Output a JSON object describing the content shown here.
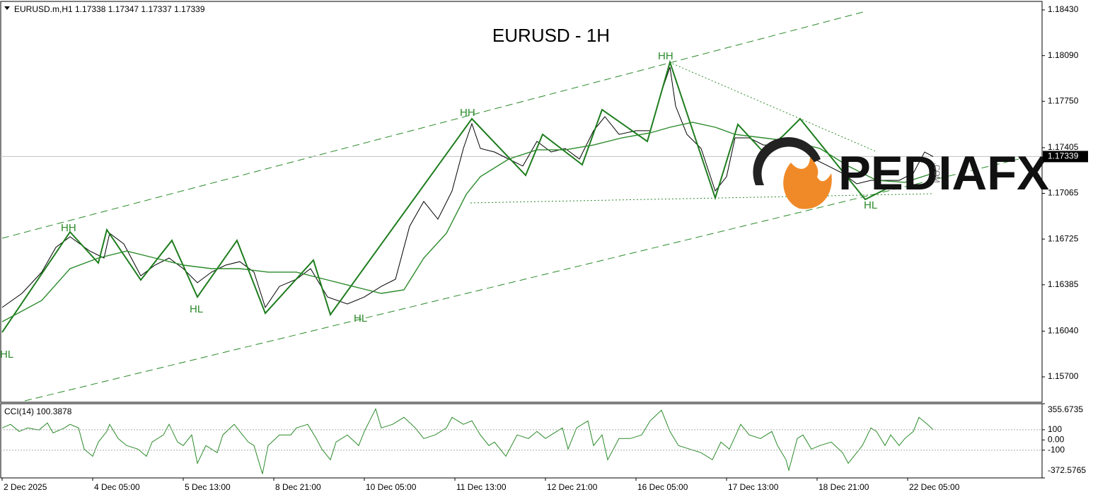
{
  "chart_data": [
    {
      "type": "line",
      "header": "EURUSD.m,H1  1.17338 1.17347 1.17337 1.17339",
      "title": "EURUSD - 1H",
      "annotations": [
        "HH",
        "HH",
        "HH",
        "HL",
        "HL",
        "HL",
        "HL"
      ],
      "last_price": 1.17339,
      "xlim": [
        -0.5,
        367.5
      ],
      "ylim": [
        1.15516,
        1.18488
      ],
      "yticks": [
        {
          "value": 1.1843,
          "label": "1.18430"
        },
        {
          "value": 1.1809,
          "label": "1.18090"
        },
        {
          "value": 1.1775,
          "label": "1.17750"
        },
        1.17405,
        1.17065,
        1.16725,
        1.16385,
        {
          "value": 1.1604,
          "label": "1.16040"
        },
        {
          "value": 1.157,
          "label": "1.15700"
        }
      ],
      "series": [
        {
          "color": "#000000",
          "x": [
            0,
            7,
            14,
            19,
            24,
            31,
            36,
            38,
            43,
            49,
            54,
            59,
            64,
            69,
            74,
            79,
            84,
            89,
            93,
            98,
            104,
            109,
            115,
            122,
            128,
            134,
            139,
            144,
            149,
            154,
            159,
            163,
            166,
            169,
            174,
            179,
            184,
            189,
            194,
            199,
            204,
            209,
            213,
            218,
            224,
            229,
            233,
            236,
            238,
            242,
            247,
            252,
            256,
            259,
            264,
            269,
            274,
            279,
            283,
            287,
            292,
            297,
            302,
            307,
            312,
            317,
            322,
            326,
            329
          ],
          "values": [
            1.16216,
            1.16321,
            1.16479,
            1.16663,
            1.16742,
            1.16636,
            1.16584,
            1.16768,
            1.16689,
            1.16452,
            1.16531,
            1.16584,
            1.16505,
            1.164,
            1.16479,
            1.16531,
            1.16557,
            1.16479,
            1.16216,
            1.16373,
            1.16426,
            1.16505,
            1.16294,
            1.16242,
            1.16294,
            1.16373,
            1.16426,
            1.1682,
            1.17005,
            1.16873,
            1.17083,
            1.17399,
            1.17583,
            1.17399,
            1.17373,
            1.1732,
            1.17268,
            1.17452,
            1.17373,
            1.17399,
            1.1732,
            1.17531,
            1.17636,
            1.17504,
            1.17531,
            1.17531,
            1.1782,
            1.18004,
            1.17715,
            1.17504,
            1.17399,
            1.17083,
            1.17189,
            1.17478,
            1.17478,
            1.17425,
            1.17425,
            1.17452,
            1.17399,
            1.1732,
            1.17268,
            1.17215,
            1.17136,
            1.17162,
            1.17162,
            1.17162,
            1.17215,
            1.17373,
            1.17339
          ]
        },
        {
          "color": "#1e7d1e",
          "x": [
            0,
            24,
            34,
            37,
            49,
            60,
            69,
            83,
            93,
            110,
            116,
            166,
            185,
            191,
            205,
            212,
            228,
            236,
            252,
            260,
            269,
            276,
            282,
            305,
            315
          ],
          "values": [
            1.16031,
            1.16778,
            1.16547,
            1.16794,
            1.16421,
            1.16715,
            1.16294,
            1.16715,
            1.16173,
            1.16568,
            1.16163,
            1.1762,
            1.17199,
            1.17504,
            1.17278,
            1.17688,
            1.17452,
            1.18041,
            1.17031,
            1.17578,
            1.17373,
            1.17494,
            1.1762,
            1.1702,
            1.17126
          ]
        },
        {
          "color": "#2a8a2a",
          "x": [
            0,
            14,
            24,
            34,
            44,
            54,
            64,
            74,
            84,
            94,
            104,
            114,
            124,
            134,
            142,
            149,
            157,
            164,
            169,
            179,
            189,
            199,
            209,
            219,
            229,
            236,
            244,
            252,
            259,
            269,
            279,
            289,
            299,
            309,
            319,
            329
          ],
          "values": [
            1.1611,
            1.16268,
            1.16505,
            1.16584,
            1.16636,
            1.16584,
            1.16531,
            1.16505,
            1.16505,
            1.16479,
            1.16479,
            1.16426,
            1.16373,
            1.16321,
            1.16347,
            1.16584,
            1.16768,
            1.17057,
            1.17189,
            1.1732,
            1.17389,
            1.17389,
            1.17425,
            1.17478,
            1.17515,
            1.17557,
            1.17594,
            1.17557,
            1.17504,
            1.17478,
            1.17452,
            1.17399,
            1.17268,
            1.17162,
            1.17147,
            1.17215
          ]
        }
      ]
    },
    {
      "type": "line",
      "title": "CCI(14) 100.3878",
      "xlim": [
        -0.5,
        367.5
      ],
      "ylim": [
        -372.5765,
        355.6735
      ],
      "yticks": [
        355.6735,
        100,
        {
          "value": 0,
          "label": "0.00"
        },
        -100,
        -372.5765
      ],
      "xticks": [
        {
          "value": 0,
          "label": "2 Dec 2025"
        },
        {
          "value": 32,
          "label": "4 Dec 05:00"
        },
        {
          "value": 64,
          "label": "5 Dec 13:00"
        },
        {
          "value": 96,
          "label": "8 Dec 21:00"
        },
        {
          "value": 128,
          "label": "10 Dec 05:00"
        },
        {
          "value": 160,
          "label": "11 Dec 13:00"
        },
        {
          "value": 192,
          "label": "12 Dec 21:00"
        },
        {
          "value": 224,
          "label": "16 Dec 05:00"
        },
        {
          "value": 256,
          "label": "17 Dec 13:00"
        },
        {
          "value": 288,
          "label": "18 Dec 21:00"
        },
        {
          "value": 320,
          "label": "22 Dec 05:00"
        }
      ],
      "series": [
        {
          "color": "#2a8a2a",
          "x": [
            0,
            3,
            6,
            9,
            13,
            16,
            18,
            22,
            24,
            27,
            29,
            32,
            34,
            37,
            38,
            41,
            44,
            48,
            51,
            53,
            57,
            59,
            62,
            64,
            67,
            69,
            72,
            76,
            78,
            82,
            84,
            87,
            89,
            92,
            94,
            98,
            102,
            104,
            108,
            111,
            113,
            116,
            118,
            122,
            126,
            128,
            132,
            134,
            138,
            142,
            146,
            149,
            153,
            157,
            159,
            163,
            166,
            169,
            172,
            174,
            178,
            182,
            186,
            189,
            192,
            194,
            198,
            200,
            203,
            207,
            209,
            212,
            214,
            218,
            222,
            226,
            229,
            233,
            236,
            239,
            243,
            247,
            251,
            254,
            257,
            261,
            264,
            268,
            272,
            274,
            277,
            278,
            281,
            283,
            286,
            289,
            293,
            297,
            299,
            302,
            304,
            307,
            309,
            312,
            314,
            317,
            319,
            322,
            324,
            327,
            329
          ],
          "values": [
            118,
            153,
            83,
            118,
            97,
            166,
            69,
            118,
            153,
            118,
            -90,
            -160,
            -21,
            83,
            153,
            14,
            -55,
            -90,
            -160,
            -21,
            49,
            153,
            -21,
            -55,
            49,
            -229,
            -55,
            -125,
            49,
            153,
            83,
            -21,
            -55,
            -333,
            -55,
            49,
            49,
            118,
            153,
            14,
            -90,
            -194,
            -21,
            49,
            -55,
            83,
            305,
            118,
            153,
            222,
            118,
            14,
            49,
            118,
            222,
            153,
            187,
            49,
            -55,
            -21,
            -160,
            49,
            14,
            83,
            14,
            49,
            118,
            -90,
            118,
            187,
            -55,
            49,
            -194,
            14,
            14,
            49,
            187,
            291,
            83,
            -55,
            -90,
            -125,
            -194,
            -21,
            -90,
            153,
            49,
            14,
            83,
            -55,
            -194,
            -298,
            14,
            49,
            -90,
            -55,
            -21,
            -125,
            -229,
            -125,
            -55,
            118,
            83,
            -55,
            49,
            -55,
            14,
            83,
            222,
            153,
            100
          ]
        }
      ]
    }
  ],
  "logo": {
    "text": "PEDIAFX",
    "suffix": ".COM"
  }
}
